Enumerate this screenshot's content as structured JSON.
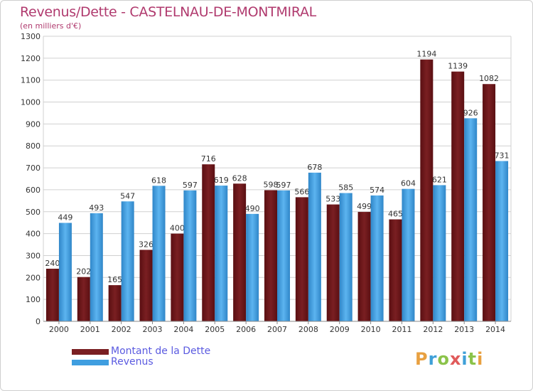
{
  "header": {
    "title": "Revenus/Dette - CASTELNAU-DE-MONTMIRAL",
    "subtitle": "(en milliers d'€)"
  },
  "colors": {
    "dette": "#7a1f22",
    "revenus": "#3f9ee0",
    "grid": "#d0d0d0",
    "title": "#b03a6e",
    "legend_text": "#5a5ae0"
  },
  "chart_data": {
    "type": "bar",
    "title": "Revenus/Dette - CASTELNAU-DE-MONTMIRAL",
    "subtitle": "(en milliers d'€)",
    "xlabel": "",
    "ylabel": "",
    "ylim": [
      0,
      1300
    ],
    "ytick_step": 100,
    "grid": true,
    "categories": [
      "2000",
      "2001",
      "2002",
      "2003",
      "2004",
      "2005",
      "2006",
      "2007",
      "2008",
      "2009",
      "2010",
      "2011",
      "2012",
      "2013",
      "2014"
    ],
    "series": [
      {
        "name": "Montant de la Dette",
        "values": [
          240,
          202,
          165,
          326,
          400,
          716,
          628,
          598,
          566,
          533,
          499,
          465,
          1194,
          1139,
          1082
        ]
      },
      {
        "name": "Revenus",
        "values": [
          449,
          493,
          547,
          618,
          597,
          619,
          490,
          597,
          678,
          585,
          574,
          604,
          621,
          926,
          731
        ]
      }
    ],
    "legend": "bottom-left"
  },
  "legend": {
    "items": [
      {
        "label": "Montant de la Dette",
        "color": "#7a1f22"
      },
      {
        "label": "Revenus",
        "color": "#3f9ee0"
      }
    ]
  },
  "logo": {
    "letters": [
      "P",
      "r",
      "o",
      "x",
      "i",
      "t",
      "i"
    ],
    "colors": [
      "#e8a040",
      "#3fa0d8",
      "#8bc34a",
      "#e05a5a",
      "#3fa0d8",
      "#8bc34a",
      "#e8a040"
    ]
  }
}
